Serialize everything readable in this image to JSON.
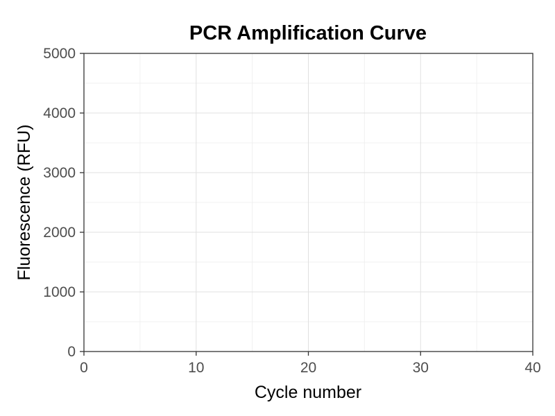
{
  "chart_data": {
    "type": "line",
    "title": "PCR Amplification Curve",
    "xlabel": "Cycle number",
    "ylabel": "Fluorescence (RFU)",
    "xlim": [
      0,
      40
    ],
    "ylim": [
      0,
      5000
    ],
    "x_ticks": [
      0,
      10,
      20,
      30,
      40
    ],
    "y_ticks": [
      0,
      1000,
      2000,
      3000,
      4000,
      5000
    ],
    "x_tick_labels": [
      "0",
      "10",
      "20",
      "30",
      "40"
    ],
    "y_tick_labels": [
      "0",
      "1000",
      "2000",
      "3000",
      "4000",
      "5000"
    ],
    "grid": true,
    "series": []
  }
}
